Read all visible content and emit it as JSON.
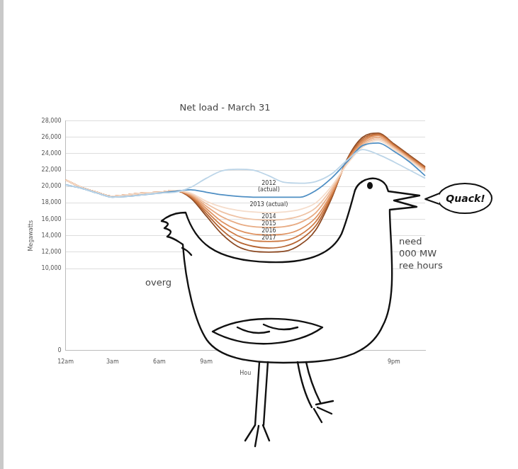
{
  "chart_data": {
    "type": "line",
    "title": "Net load - March 31",
    "y_label": "Megawatts",
    "x_label": "Hou",
    "categories": [
      "12am",
      null,
      null,
      "3am",
      null,
      null,
      "6am",
      null,
      null,
      "9am",
      null,
      null,
      null,
      null,
      null,
      null,
      null,
      null,
      null,
      null,
      null,
      "9pm",
      null,
      null
    ],
    "series": [
      {
        "name": "2012 (actual)",
        "color": "#bcd5e8",
        "values": [
          20200,
          19800,
          19200,
          18700,
          18800,
          19000,
          19200,
          19300,
          19900,
          21000,
          21900,
          22100,
          22000,
          21300,
          20500,
          20400,
          20600,
          21500,
          23200,
          24500,
          23900,
          23000,
          22000,
          21000
        ]
      },
      {
        "name": "2013 (actual)",
        "color": "#4f8fc4",
        "values": [
          20200,
          19800,
          19200,
          18700,
          18800,
          19000,
          19200,
          19400,
          19600,
          19300,
          19000,
          18800,
          18700,
          18700,
          18700,
          18700,
          19500,
          21000,
          23000,
          25000,
          25300,
          24300,
          23000,
          21300
        ]
      },
      {
        "name": "2014",
        "color": "#f5dcca",
        "values": [
          20800,
          19900,
          19300,
          18800,
          19000,
          19200,
          19300,
          19500,
          19200,
          18200,
          17500,
          17100,
          16900,
          16800,
          16900,
          17200,
          18000,
          20000,
          22700,
          24800,
          25600,
          24500,
          23200,
          21800
        ]
      },
      {
        "name": "2015",
        "color": "#efc3a5",
        "values": [
          20800,
          19900,
          19300,
          18800,
          19000,
          19200,
          19300,
          19500,
          19100,
          17900,
          16900,
          16300,
          16000,
          15900,
          16000,
          16400,
          17400,
          19700,
          22800,
          25000,
          25800,
          24700,
          23300,
          21900
        ]
      },
      {
        "name": "2016",
        "color": "#e8ab83",
        "values": [
          20800,
          19900,
          19300,
          18800,
          19000,
          19200,
          19300,
          19500,
          19000,
          17600,
          16300,
          15500,
          15100,
          15000,
          15100,
          15600,
          16800,
          19400,
          22900,
          25200,
          26000,
          24800,
          23400,
          22000
        ]
      },
      {
        "name": "2017",
        "color": "#df9362",
        "values": [
          20800,
          19900,
          19300,
          18800,
          19000,
          19200,
          19300,
          19500,
          18900,
          17300,
          15700,
          14700,
          14200,
          14100,
          14200,
          14800,
          16200,
          19100,
          23000,
          25400,
          26200,
          24900,
          23500,
          22100
        ]
      },
      {
        "color": "#cf7b45",
        "values": [
          20800,
          19900,
          19300,
          18800,
          19000,
          19200,
          19300,
          19500,
          18800,
          17000,
          15200,
          14000,
          13400,
          13300,
          13400,
          14100,
          15700,
          18900,
          23100,
          25600,
          26300,
          25000,
          23600,
          22200
        ]
      },
      {
        "color": "#b66431",
        "values": [
          20800,
          19900,
          19300,
          18800,
          19000,
          19200,
          19300,
          19500,
          18700,
          16700,
          14700,
          13300,
          12700,
          12500,
          12700,
          13500,
          15200,
          18700,
          23200,
          25800,
          26400,
          25100,
          23700,
          22300
        ]
      },
      {
        "color": "#8d4b25",
        "values": [
          20800,
          19900,
          19300,
          18800,
          19000,
          19200,
          19300,
          19500,
          18600,
          16400,
          14200,
          12700,
          12100,
          12000,
          12100,
          12900,
          14700,
          18500,
          23300,
          26000,
          26500,
          25200,
          23800,
          22400
        ]
      }
    ],
    "ylim": [
      0,
      28000
    ],
    "yticks": [
      0,
      {
        "value": 10000,
        "label": "10,000"
      },
      {
        "value": 12000,
        "label": "12,000"
      },
      {
        "value": 14000,
        "label": "14,000"
      },
      {
        "value": 16000,
        "label": "16,000"
      },
      {
        "value": 18000,
        "label": "18,000"
      },
      {
        "value": 20000,
        "label": "20,000"
      },
      {
        "value": 22000,
        "label": "22,000"
      },
      {
        "value": 24000,
        "label": "24,000"
      },
      {
        "value": 26000,
        "label": "26,000"
      },
      {
        "value": 28000,
        "label": "28,000"
      }
    ],
    "grid": "y",
    "annotations": [
      [
        "overg"
      ],
      [
        "need",
        "000 MW",
        "ree hours"
      ],
      [
        "Quack!"
      ]
    ]
  }
}
